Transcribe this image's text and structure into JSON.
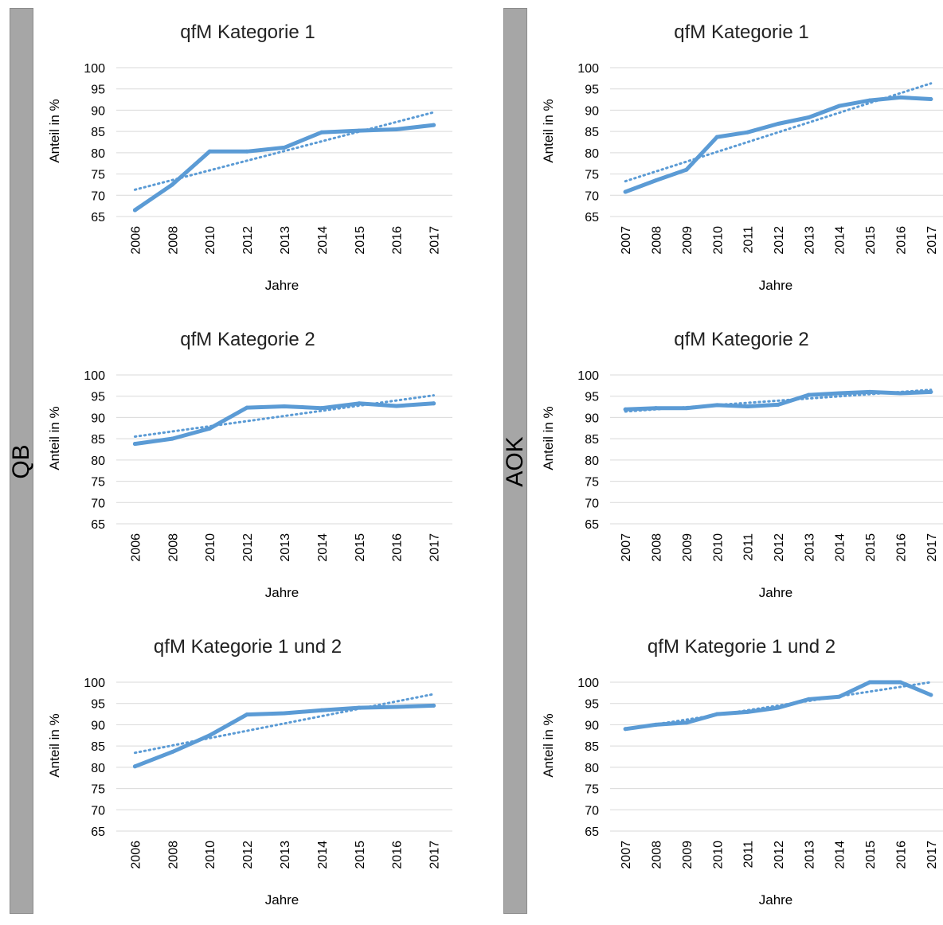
{
  "groups": [
    {
      "label": "QB"
    },
    {
      "label": "AOK"
    }
  ],
  "colors": {
    "series": "#5b9bd5",
    "trend": "#5b9bd5",
    "grid": "#d9d9d9",
    "group_bar": "#a6a6a6"
  },
  "chart_data": [
    {
      "type": "line",
      "group": "QB",
      "title": "qfM Kategorie 1",
      "xlabel": "Jahre",
      "ylabel": "Anteil in %",
      "ylim": [
        65,
        100
      ],
      "yticks": [
        65,
        70,
        75,
        80,
        85,
        90,
        95,
        100
      ],
      "categories": [
        "2006",
        "2008",
        "2010",
        "2012",
        "2013",
        "2014",
        "2015",
        "2016",
        "2017"
      ],
      "values": [
        66.5,
        72.5,
        80.3,
        80.3,
        81.2,
        84.8,
        85.2,
        85.5,
        86.5
      ],
      "trend": [
        71.3,
        89.5
      ],
      "grid": true,
      "legend": false
    },
    {
      "type": "line",
      "group": "AOK",
      "title": "qfM Kategorie 1",
      "xlabel": "Jahre",
      "ylabel": "Anteil in %",
      "ylim": [
        65,
        100
      ],
      "yticks": [
        65,
        70,
        75,
        80,
        85,
        90,
        95,
        100
      ],
      "categories": [
        "2007",
        "2008",
        "2009",
        "2010",
        "2011",
        "2012",
        "2013",
        "2014",
        "2015",
        "2016",
        "2017"
      ],
      "values": [
        70.8,
        73.5,
        76.0,
        83.7,
        84.8,
        86.8,
        88.3,
        91.0,
        92.3,
        93.0,
        92.6
      ],
      "trend": [
        73.3,
        96.3
      ],
      "grid": true,
      "legend": false
    },
    {
      "type": "line",
      "group": "QB",
      "title": "qfM Kategorie 2",
      "xlabel": "Jahre",
      "ylabel": "Anteil in %",
      "ylim": [
        65,
        100
      ],
      "yticks": [
        65,
        70,
        75,
        80,
        85,
        90,
        95,
        100
      ],
      "categories": [
        "2006",
        "2008",
        "2010",
        "2012",
        "2013",
        "2014",
        "2015",
        "2016",
        "2017"
      ],
      "values": [
        83.8,
        85.0,
        87.4,
        92.3,
        92.6,
        92.2,
        93.3,
        92.7,
        93.3
      ],
      "trend": [
        85.5,
        95.2
      ],
      "grid": true,
      "legend": false
    },
    {
      "type": "line",
      "group": "AOK",
      "title": "qfM Kategorie 2",
      "xlabel": "Jahre",
      "ylabel": "Anteil in %",
      "ylim": [
        65,
        100
      ],
      "yticks": [
        65,
        70,
        75,
        80,
        85,
        90,
        95,
        100
      ],
      "categories": [
        "2007",
        "2008",
        "2009",
        "2010",
        "2011",
        "2012",
        "2013",
        "2014",
        "2015",
        "2016",
        "2017"
      ],
      "values": [
        91.9,
        92.2,
        92.2,
        92.9,
        92.6,
        93.0,
        95.3,
        95.7,
        96.0,
        95.7,
        96.0
      ],
      "trend": [
        91.4,
        96.5
      ],
      "grid": true,
      "legend": false
    },
    {
      "type": "line",
      "group": "QB",
      "title": "qfM Kategorie 1 und 2",
      "xlabel": "Jahre",
      "ylabel": "Anteil in %",
      "ylim": [
        65,
        100
      ],
      "yticks": [
        65,
        70,
        75,
        80,
        85,
        90,
        95,
        100
      ],
      "categories": [
        "2006",
        "2008",
        "2010",
        "2012",
        "2013",
        "2014",
        "2015",
        "2016",
        "2017"
      ],
      "values": [
        80.2,
        83.6,
        87.5,
        92.4,
        92.7,
        93.4,
        94.0,
        94.2,
        94.5
      ],
      "trend": [
        83.4,
        97.2
      ],
      "grid": true,
      "legend": false
    },
    {
      "type": "line",
      "group": "AOK",
      "title": "qfM Kategorie 1 und 2",
      "xlabel": "Jahre",
      "ylabel": "Anteil in %",
      "ylim": [
        65,
        100
      ],
      "yticks": [
        65,
        70,
        75,
        80,
        85,
        90,
        95,
        100
      ],
      "categories": [
        "2007",
        "2008",
        "2009",
        "2010",
        "2011",
        "2012",
        "2013",
        "2014",
        "2015",
        "2016",
        "2017"
      ],
      "values": [
        89.0,
        90.0,
        90.5,
        92.5,
        93.0,
        94.0,
        96.0,
        96.6,
        100.0,
        100.0,
        97.0
      ],
      "trend": [
        89.0,
        100.0
      ],
      "grid": true,
      "legend": false
    }
  ]
}
